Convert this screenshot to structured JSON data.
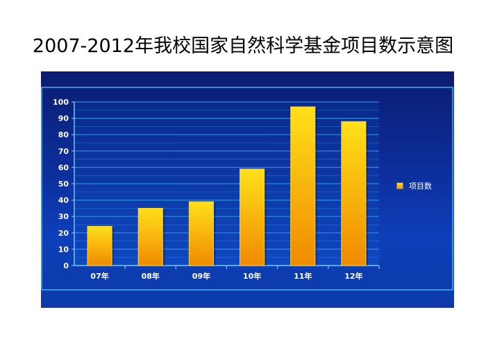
{
  "slide": {
    "title": "2007-2012年我校国家自然科学基金项目数示意图"
  },
  "colors": {
    "panel_top": "#0a1c70",
    "panel_bottom": "#0c3aa8",
    "plot_border": "#3fb6f0",
    "gridline": "#2f8fe0",
    "bar_top": "#ffe01a",
    "bar_bottom": "#f08a00",
    "text": "#ffffff"
  },
  "chart_data": {
    "type": "bar",
    "title": "2007-2012年我校国家自然科学基金项目数示意图",
    "categories": [
      "07年",
      "08年",
      "09年",
      "10年",
      "11年",
      "12年"
    ],
    "series": [
      {
        "name": "项目数",
        "values": [
          24,
          35,
          39,
          59,
          97,
          88
        ]
      }
    ],
    "ylim": [
      0,
      100
    ],
    "yticks": [
      0,
      10,
      20,
      30,
      40,
      50,
      60,
      70,
      80,
      90,
      100
    ],
    "xlabel": "",
    "ylabel": "",
    "grid": true,
    "legend": "right"
  }
}
